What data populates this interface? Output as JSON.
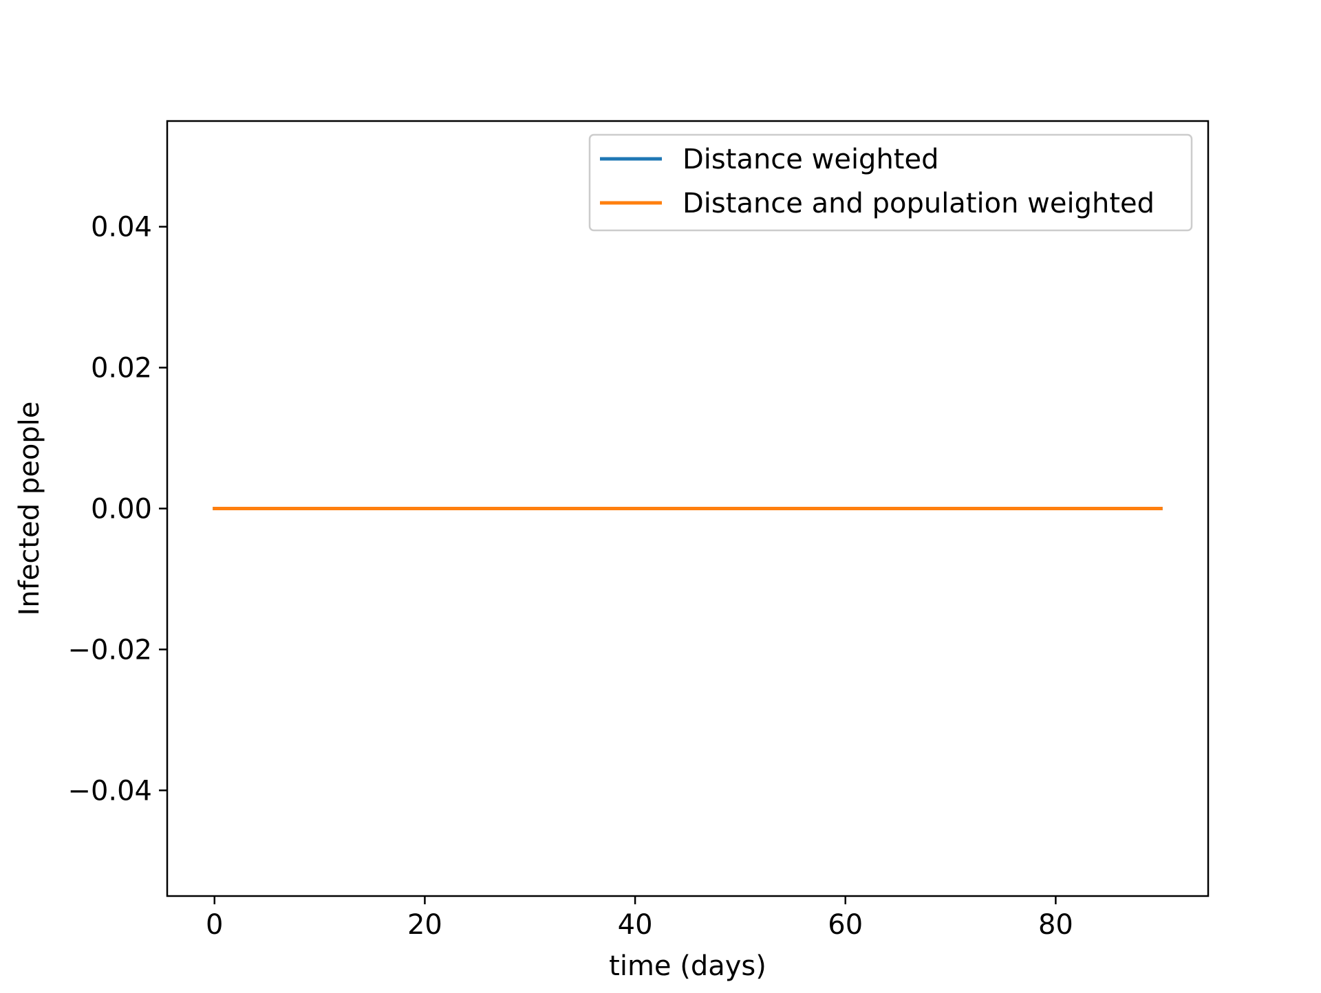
{
  "chart_data": {
    "type": "line",
    "xlabel": "time (days)",
    "ylabel": "Infected people",
    "xlim": [
      -4.5,
      94.5
    ],
    "ylim": [
      -0.055,
      0.055
    ],
    "x_ticks": [
      0,
      20,
      40,
      60,
      80
    ],
    "x_tick_labels": [
      "0",
      "20",
      "40",
      "60",
      "80"
    ],
    "y_ticks": [
      -0.04,
      -0.02,
      0.0,
      0.02,
      0.04
    ],
    "y_tick_labels": [
      "−0.04",
      "−0.02",
      "0.00",
      "0.02",
      "0.04"
    ],
    "grid": false,
    "legend_position": "top-right",
    "series": [
      {
        "name": "Distance weighted",
        "color": "#1f77b4",
        "x": [
          0,
          10,
          20,
          30,
          40,
          50,
          60,
          70,
          80,
          90
        ],
        "y": [
          0,
          0,
          0,
          0,
          0,
          0,
          0,
          0,
          0,
          0
        ]
      },
      {
        "name": "Distance and population weighted",
        "color": "#ff7f0e",
        "x": [
          0,
          10,
          20,
          30,
          40,
          50,
          60,
          70,
          80,
          90
        ],
        "y": [
          0,
          0,
          0,
          0,
          0,
          0,
          0,
          0,
          0,
          0
        ]
      }
    ]
  }
}
